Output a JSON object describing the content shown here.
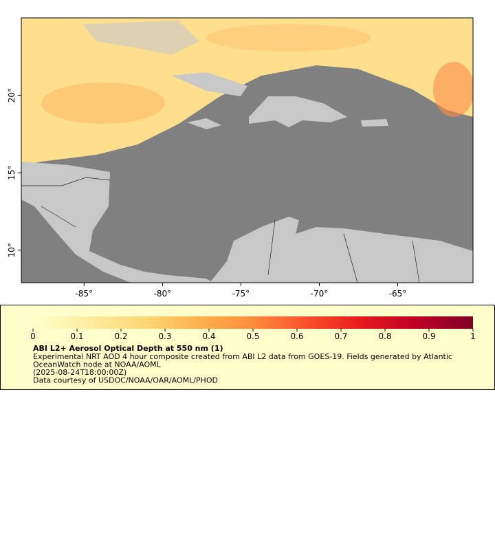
{
  "map": {
    "xlim": [
      -89,
      -60.2
    ],
    "ylim": [
      7.9,
      25
    ],
    "xticks": [
      {
        "value": -85,
        "label": "-85°"
      },
      {
        "value": -80,
        "label": "-80°"
      },
      {
        "value": -75,
        "label": "-75°"
      },
      {
        "value": -70,
        "label": "-70°"
      },
      {
        "value": -65,
        "label": "-65°"
      }
    ],
    "yticks": [
      {
        "value": 10,
        "label": "10°"
      },
      {
        "value": 15,
        "label": "15°"
      },
      {
        "value": 20,
        "label": "20°"
      }
    ]
  },
  "colorbar": {
    "lim": [
      0,
      1
    ],
    "ticks": [
      0,
      0.1,
      0.2,
      0.3,
      0.4,
      0.5,
      0.6,
      0.7,
      0.8,
      0.9,
      1
    ],
    "colors": [
      "#ffffcc",
      "#ffeda0",
      "#fed976",
      "#feb24c",
      "#fd8d3c",
      "#fc4e2a",
      "#e31a1c",
      "#bd0026",
      "#800026"
    ]
  },
  "caption": {
    "title": "ABI L2+ Aerosol Optical Depth at 550 nm (1)",
    "lines": [
      "Experimental NRT AOD 4 hour composite created from ABI L2 data from GOES-19. Fields generated by Atlantic",
      "OceanWatch node at NOAA/AOML",
      "(2025-08-24T18:00:00Z)",
      "Data courtesy of USDOC/NOAA/OAR/AOML/PHOD"
    ]
  }
}
